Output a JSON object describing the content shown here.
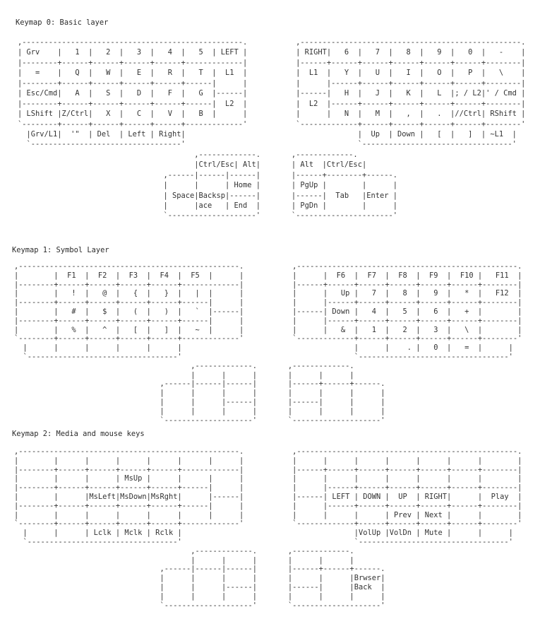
{
  "layers": [
    {
      "title": "Keymap 0: Basic layer",
      "lines": [
        ",--------------------------------------------------.           ,--------------------------------------------------.",
        "| Grv    |   1  |   2  |   3  |   4  |   5  | LEFT |           | RIGHT|   6  |   7  |   8  |   9  |   0  |   -    |",
        "|--------+------+------+------+------+-------------|           |------+------+------+------+------+------+--------|",
        "|   =    |   Q  |   W  |   E  |   R  |   T  |  L1  |           |  L1  |   Y  |   U  |   I  |   O  |   P  |   \\    |",
        "|--------+------+------+------+------+------|      |           |      |------+------+------+------+------+--------|",
        "| Esc/Cmd|   A  |   S  |   D  |   F  |   G  |------|           |------|   H  |   J  |   K  |   L  |; / L2|' / Cmd |",
        "|--------+------+------+------+------+------|  L2  |           |  L2  |------+------+------+------+------+--------|",
        "| LShift |Z/Ctrl|   X  |   C  |   V  |   B  |      |           |      |   N  |   M  |   ,  |   .  |//Ctrl| RShift |",
        "`--------+------+------+------+------+-------------'           `-------------+------+------+------+------+--------'",
        "  |Grv/L1|  '\"  | Del  | Left | Right|                                       |  Up  | Down |   [  |   ]  | ~L1  |",
        "  `----------------------------------'                                       `----------------------------------'",
        "                                        ,-------------.       ,-------------.",
        "                                        |Ctrl/Esc| Alt|       | Alt  |Ctrl/Esc|",
        "                                 ,------|------|------|       |------+--------+------.",
        "                                 |      |      | Home |       | PgUp |        |      |",
        "                                 | Space|Backsp|------|       |------|  Tab   |Enter |",
        "                                 |      |ace   | End  |       | PgDn |        |      |",
        "                                 `--------------------'       `----------------------'"
      ]
    },
    {
      "title": "Keymap 1: Symbol Layer",
      "lines": [
        ",--------------------------------------------------.           ,--------------------------------------------------.",
        "|        |  F1  |  F2  |  F3  |  F4  |  F5  |      |           |      |  F6  |  F7  |  F8  |  F9  |  F10 |   F11  |",
        "|--------+------+------+------+------+-------------|           |------+------+------+------+------+------+--------|",
        "|        |   !  |   @  |   {  |   }  |   |  |      |           |      |   Up |   7  |   8  |   9  |   *  |   F12  |",
        "|--------+------+------+------+------+------|      |           |      |------+------+------+------+------+--------|",
        "|        |   #  |   $  |   (  |   )  |   `  |------|           |------| Down |   4  |   5  |   6  |   +  |        |",
        "|--------+------+------+------+------+------|      |           |      |------+------+------+------+------+--------|",
        "|        |   %  |   ^  |   [  |   ]  |   ~  |      |           |      |   &  |   1  |   2  |   3  |   \\  |        |",
        "`--------+------+------+------+------+-------------'           `-------------+------+------+------+------+--------'",
        "  |      |      |      |      |      |                                       |      |    . |   0  |   =  |      |",
        "  `----------------------------------'                                       `----------------------------------'",
        "                                        ,-------------.       ,-------------.",
        "                                        |      |      |       |      |      |",
        "                                 ,------|------|------|       |------+------+------.",
        "                                 |      |      |      |       |      |      |      |",
        "                                 |      |      |------|       |------|      |      |",
        "                                 |      |      |      |       |      |      |      |",
        "                                 `--------------------'       `--------------------'"
      ]
    },
    {
      "title": "Keymap 2: Media and mouse keys",
      "lines": [
        ",--------------------------------------------------.           ,--------------------------------------------------.",
        "|        |      |      |      |      |      |      |           |      |      |      |      |      |      |        |",
        "|--------+------+------+------+------+-------------|           |------+------+------+------+------+------+--------|",
        "|        |      |      | MsUp |      |      |      |           |      |      |      |      |      |      |        |",
        "|--------+------+------+------+------+------|      |           |      |------+------+------+------+------+--------|",
        "|        |      |MsLeft|MsDown|MsRght|      |------|           |------| LEFT | DOWN |  UP  | RIGHT|      |  Play  |",
        "|--------+------+------+------+------+------|      |           |      |------+------+------+------+------+--------|",
        "|        |      |      |      |      |      |      |           |      |      |      | Prev | Next |      |        |",
        "`--------+------+------+------+------+-------------'           `-------------+------+------+------+------+--------'",
        "  |      |      | Lclk | Mclk | Rclk |                                       |VolUp |VolDn | Mute |      |      |",
        "  `----------------------------------'                                       `----------------------------------'",
        "                                        ,-------------.       ,-------------.",
        "                                        |      |      |       |      |      |",
        "                                 ,------|------|------|       |------+------+------.",
        "                                 |      |      |      |       |      |      |Brwser|",
        "                                 |      |      |------|       |------|      |Back  |",
        "                                 |      |      |      |       |      |      |      |",
        "                                 `--------------------'       `--------------------'"
      ]
    }
  ]
}
